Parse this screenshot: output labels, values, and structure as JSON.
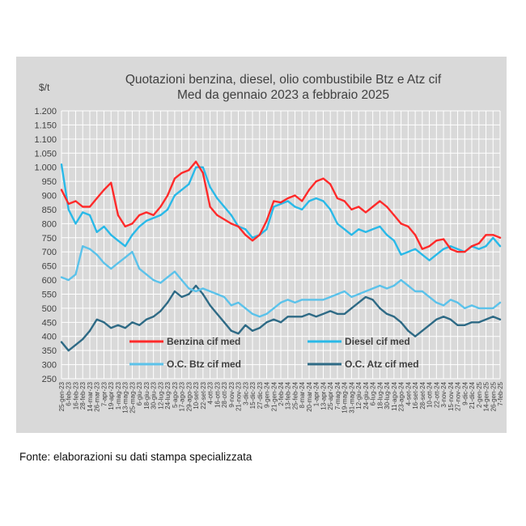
{
  "chart_data": {
    "type": "line",
    "title": [
      "Quotazioni benzina, diesel, olio combustibile Btz e Atz cif",
      "Med da gennaio 2023 a febbraio 2025"
    ],
    "unit": "$/t",
    "ylabel": "$/t",
    "xlabel": "",
    "ylim": [
      250,
      1200
    ],
    "yticks": [
      "1.200",
      "1.150",
      "1.100",
      "1.050",
      "1.000",
      "950",
      "900",
      "850",
      "800",
      "750",
      "700",
      "650",
      "600",
      "550",
      "500",
      "450",
      "400",
      "350",
      "300",
      "250"
    ],
    "ytick_values": [
      1200,
      1150,
      1100,
      1050,
      1000,
      950,
      900,
      850,
      800,
      750,
      700,
      650,
      600,
      550,
      500,
      450,
      400,
      350,
      300,
      250
    ],
    "grid": true,
    "categories": [
      "25-gen-23",
      "6-feb-23",
      "16-feb-23",
      "28-feb-23",
      "14-mar-23",
      "26-mar-23",
      "7-apr-23",
      "19-apr-23",
      "1-mag-23",
      "13-mag-23",
      "25-mag-23",
      "6-giu-23",
      "18-giu-23",
      "30-giu-23",
      "12-lug-23",
      "24-lug-23",
      "5-ago-23",
      "17-ago-23",
      "29-ago-23",
      "10-set-23",
      "22-set-23",
      "4-ott-23",
      "16-ott-23",
      "28-ott-23",
      "9-nov-23",
      "21-nov-23",
      "3-dic-23",
      "15-dic-23",
      "27-dic-23",
      "9-gen-24",
      "21-gen-24",
      "2-feb-24",
      "13-feb-24",
      "25-feb-24",
      "8-mar-24",
      "20-mar-24",
      "1-apr-24",
      "13-apr-24",
      "25-apr-24",
      "7-mag-24",
      "19-mag-24",
      "31-mag-24",
      "12-giu-24",
      "24-giu-24",
      "6-lug-24",
      "18-lug-24",
      "30-lug-24",
      "11-ago-24",
      "23-ago-24",
      "4-set-24",
      "16-set-24",
      "28-set-24",
      "10-ott-24",
      "22-ott-24",
      "3-nov-24",
      "15-nov-24",
      "27-nov-24",
      "9-dic-24",
      "21-dic-24",
      "2-gen-25",
      "14-gen-25",
      "26-gen-25",
      "7-feb-25"
    ],
    "series": [
      {
        "name": "Benzina cif med",
        "color": "#ff2a2a",
        "values": [
          920,
          870,
          880,
          860,
          860,
          890,
          920,
          945,
          830,
          790,
          800,
          830,
          840,
          830,
          860,
          900,
          960,
          980,
          990,
          1020,
          980,
          860,
          830,
          815,
          800,
          790,
          760,
          740,
          760,
          810,
          880,
          875,
          890,
          900,
          880,
          920,
          950,
          960,
          940,
          890,
          880,
          850,
          860,
          840,
          860,
          880,
          860,
          830,
          800,
          790,
          760,
          710,
          720,
          740,
          745,
          710,
          700,
          700,
          720,
          730,
          760,
          760,
          750
        ]
      },
      {
        "name": "Diesel cif med",
        "color": "#29b9e8",
        "values": [
          1010,
          850,
          800,
          840,
          830,
          770,
          790,
          760,
          740,
          720,
          760,
          790,
          810,
          820,
          830,
          850,
          900,
          920,
          940,
          1000,
          1000,
          930,
          890,
          860,
          830,
          790,
          780,
          750,
          760,
          780,
          860,
          870,
          880,
          860,
          850,
          880,
          890,
          880,
          850,
          800,
          780,
          760,
          780,
          770,
          780,
          790,
          760,
          740,
          690,
          700,
          710,
          690,
          670,
          690,
          710,
          720,
          710,
          700,
          720,
          710,
          720,
          750,
          720
        ]
      },
      {
        "name": "O.C. Btz cif med",
        "color": "#5bc2ea",
        "values": [
          610,
          600,
          620,
          720,
          710,
          690,
          660,
          640,
          660,
          680,
          700,
          640,
          620,
          600,
          590,
          610,
          630,
          600,
          570,
          560,
          570,
          560,
          550,
          540,
          510,
          520,
          500,
          480,
          470,
          480,
          500,
          520,
          530,
          520,
          530,
          530,
          530,
          530,
          540,
          550,
          560,
          540,
          550,
          560,
          570,
          580,
          570,
          580,
          600,
          580,
          560,
          560,
          540,
          520,
          510,
          530,
          520,
          500,
          510,
          500,
          500,
          500,
          520
        ]
      },
      {
        "name": "O.C. Atz cif med",
        "color": "#2e6a85",
        "values": [
          380,
          350,
          370,
          390,
          420,
          460,
          450,
          430,
          440,
          430,
          450,
          440,
          460,
          470,
          490,
          520,
          560,
          540,
          550,
          580,
          550,
          510,
          480,
          450,
          420,
          410,
          440,
          420,
          430,
          450,
          460,
          450,
          470,
          470,
          470,
          480,
          470,
          480,
          490,
          480,
          480,
          500,
          520,
          540,
          530,
          500,
          480,
          470,
          450,
          420,
          400,
          420,
          440,
          460,
          470,
          460,
          440,
          440,
          450,
          450,
          460,
          470,
          460
        ]
      }
    ],
    "legend": "bottom, two columns, inside plot area"
  },
  "source_note": "Fonte: elaborazioni su dati stampa specializzata"
}
